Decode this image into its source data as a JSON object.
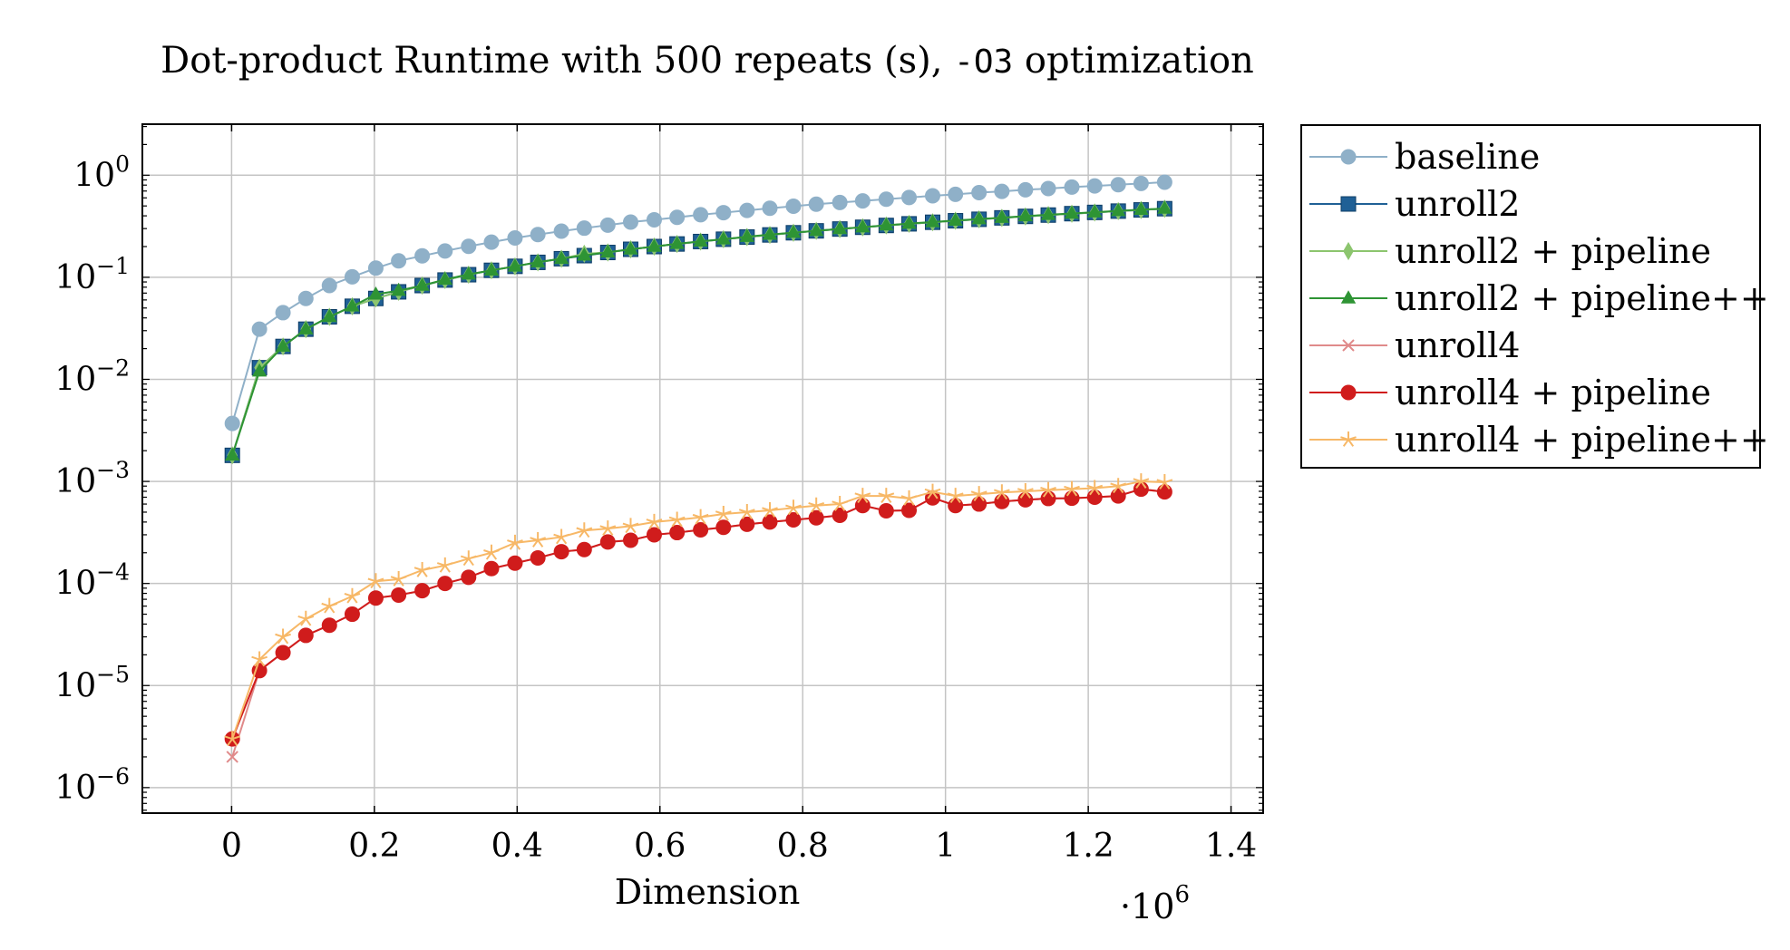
{
  "chart_data": {
    "type": "line",
    "title_main": "Dot-product Runtime with 500 repeats (s),",
    "title_code": "-O3",
    "title_rest": "optimization",
    "xlabel": "Dimension",
    "x_multiplier": "·10",
    "x_multiplier_exp": "6",
    "xlim": [
      -0.125,
      1.445
    ],
    "ylim_log10": [
      -6.25,
      0.5
    ],
    "yscale": "log",
    "grid": true,
    "legend_position": "outside-right",
    "x_ticks": [
      0,
      0.2,
      0.4,
      0.6,
      0.8,
      1,
      1.2,
      1.4
    ],
    "x_tick_labels": [
      "0",
      "0.2",
      "0.4",
      "0.6",
      "0.8",
      "1",
      "1.2",
      "1.4"
    ],
    "y_ticks_exp": [
      0,
      -1,
      -2,
      -3,
      -4,
      -5,
      -6
    ],
    "y_tick_labels": [
      "0",
      "−1",
      "−2",
      "−3",
      "−4",
      "−5",
      "−6"
    ],
    "y_tick_base": "10",
    "x": [
      0.001,
      0.039,
      0.072,
      0.104,
      0.137,
      0.169,
      0.202,
      0.234,
      0.267,
      0.299,
      0.332,
      0.364,
      0.397,
      0.429,
      0.462,
      0.494,
      0.527,
      0.559,
      0.592,
      0.624,
      0.657,
      0.689,
      0.722,
      0.754,
      0.787,
      0.819,
      0.852,
      0.884,
      0.917,
      0.949,
      0.982,
      1.014,
      1.047,
      1.079,
      1.112,
      1.144,
      1.177,
      1.209,
      1.242,
      1.274,
      1.307
    ],
    "series": [
      {
        "name": "baseline",
        "color": "#8fb0c8",
        "marker": "circle",
        "values": [
          0.0037,
          0.031,
          0.045,
          0.062,
          0.083,
          0.101,
          0.123,
          0.145,
          0.162,
          0.181,
          0.201,
          0.221,
          0.243,
          0.262,
          0.283,
          0.303,
          0.324,
          0.347,
          0.366,
          0.387,
          0.41,
          0.43,
          0.452,
          0.474,
          0.497,
          0.52,
          0.54,
          0.56,
          0.582,
          0.605,
          0.628,
          0.65,
          0.675,
          0.695,
          0.72,
          0.74,
          0.765,
          0.785,
          0.808,
          0.83,
          0.855
        ]
      },
      {
        "name": "unroll2",
        "color": "#1f6096",
        "marker": "square",
        "values": [
          0.0018,
          0.013,
          0.021,
          0.031,
          0.041,
          0.052,
          0.062,
          0.072,
          0.083,
          0.094,
          0.106,
          0.117,
          0.128,
          0.14,
          0.152,
          0.163,
          0.175,
          0.188,
          0.2,
          0.212,
          0.224,
          0.236,
          0.248,
          0.26,
          0.273,
          0.285,
          0.297,
          0.309,
          0.322,
          0.334,
          0.346,
          0.358,
          0.37,
          0.382,
          0.395,
          0.407,
          0.42,
          0.432,
          0.445,
          0.457,
          0.47
        ]
      },
      {
        "name": "unroll2 + pipeline",
        "color": "#8cc56e",
        "marker": "diamond",
        "values": [
          0.0018,
          0.013,
          0.021,
          0.031,
          0.041,
          0.052,
          0.062,
          0.072,
          0.083,
          0.094,
          0.106,
          0.117,
          0.128,
          0.14,
          0.152,
          0.17,
          0.175,
          0.188,
          0.2,
          0.212,
          0.224,
          0.236,
          0.248,
          0.26,
          0.273,
          0.285,
          0.297,
          0.309,
          0.322,
          0.334,
          0.346,
          0.358,
          0.37,
          0.382,
          0.395,
          0.407,
          0.42,
          0.432,
          0.445,
          0.457,
          0.47
        ]
      },
      {
        "name": "unroll2 + pipeline++",
        "color": "#2e9434",
        "marker": "triangle",
        "values": [
          0.0018,
          0.012,
          0.021,
          0.031,
          0.041,
          0.052,
          0.068,
          0.074,
          0.083,
          0.095,
          0.107,
          0.117,
          0.128,
          0.141,
          0.152,
          0.164,
          0.176,
          0.188,
          0.2,
          0.213,
          0.225,
          0.236,
          0.25,
          0.262,
          0.274,
          0.285,
          0.298,
          0.31,
          0.323,
          0.336,
          0.348,
          0.36,
          0.372,
          0.384,
          0.398,
          0.41,
          0.422,
          0.434,
          0.447,
          0.46,
          0.472
        ]
      },
      {
        "name": "unroll4",
        "color": "#e08a8a",
        "marker": "cross",
        "values": [
          2e-06,
          1.4e-05,
          2.1e-05,
          3.1e-05,
          3.9e-05,
          5e-05,
          7.2e-05,
          7.7e-05,
          8.5e-05,
          0.0001,
          0.000115,
          0.00014,
          0.000158,
          0.000178,
          0.000205,
          0.000215,
          0.000255,
          0.000265,
          0.0003,
          0.000315,
          0.000335,
          0.000355,
          0.00038,
          0.0004,
          0.00042,
          0.00044,
          0.000465,
          0.00058,
          0.000515,
          0.00052,
          0.00069,
          0.00058,
          0.0006,
          0.000635,
          0.00066,
          0.00068,
          0.000685,
          0.0007,
          0.00072,
          0.00084,
          0.00079
        ]
      },
      {
        "name": "unroll4 + pipeline",
        "color": "#d01c1c",
        "marker": "circle",
        "values": [
          3e-06,
          1.4e-05,
          2.1e-05,
          3.1e-05,
          3.9e-05,
          5e-05,
          7.2e-05,
          7.7e-05,
          8.5e-05,
          0.0001,
          0.000115,
          0.00014,
          0.000158,
          0.000178,
          0.000205,
          0.000215,
          0.000255,
          0.000265,
          0.0003,
          0.000315,
          0.000335,
          0.000355,
          0.00038,
          0.0004,
          0.00042,
          0.00044,
          0.000465,
          0.00058,
          0.000515,
          0.00052,
          0.00069,
          0.00058,
          0.0006,
          0.000635,
          0.00066,
          0.00068,
          0.000685,
          0.0007,
          0.00072,
          0.00084,
          0.00079
        ]
      },
      {
        "name": "unroll4 + pipeline++",
        "color": "#f7b867",
        "marker": "star",
        "values": [
          3e-06,
          1.8e-05,
          3e-05,
          4.5e-05,
          6e-05,
          7.5e-05,
          0.000105,
          0.00011,
          0.000135,
          0.00015,
          0.000175,
          0.0002,
          0.00025,
          0.000265,
          0.000285,
          0.00033,
          0.000345,
          0.000365,
          0.0004,
          0.00042,
          0.000445,
          0.00048,
          0.0005,
          0.00052,
          0.00055,
          0.00058,
          0.0006,
          0.00072,
          0.00072,
          0.00068,
          0.00079,
          0.00072,
          0.00075,
          0.00078,
          0.0008,
          0.00082,
          0.00084,
          0.00086,
          0.0009,
          0.001,
          0.00098
        ]
      }
    ]
  }
}
